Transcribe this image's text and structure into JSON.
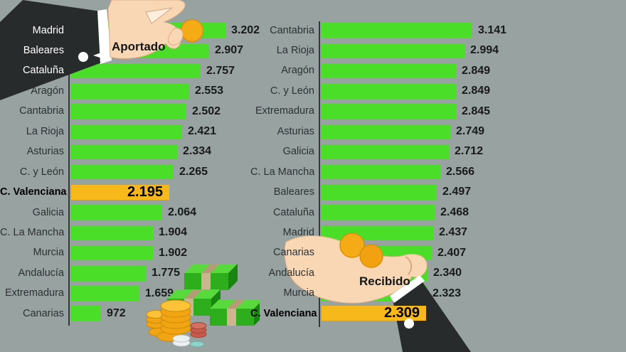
{
  "colors": {
    "background": "#98a2a1",
    "bar_green": "#4ade28",
    "bar_highlight": "#f7b81b",
    "axis": "#33383a",
    "label_text": "#2c3133",
    "label_on_sleeve": "#ffffff",
    "value_text": "#17191a",
    "sleeve_black": "#282b2c",
    "hand_skin": "#f9d7b5",
    "coin_gold": "#f2a716"
  },
  "icons": {
    "giving_hand_icon": "hand dropping a gold coin (left, Aportado)",
    "receiving_hand_icon": "open hand catching gold coins (right, Recibido)",
    "money_stacks_icon": "green banknote bundles with piles of gold, red and silver coins",
    "white_dot_left": "white round marker on black sleeve",
    "white_dot_right": "white round marker on black sleeve"
  },
  "chart_data": [
    {
      "type": "bar",
      "orientation": "horizontal",
      "title": "Aportado",
      "categories": [
        "Madrid",
        "Baleares",
        "Cataluña",
        "Aragón",
        "Cantabria",
        "La Rioja",
        "Asturias",
        "C. y León",
        "C. Valenciana",
        "Galicia",
        "C. La Mancha",
        "Murcia",
        "Andalucía",
        "Extremadura",
        "Canarias"
      ],
      "values": [
        3202,
        2907,
        2757,
        2553,
        2502,
        2421,
        2334,
        2265,
        2195,
        2064,
        1904,
        1902,
        1775,
        1659,
        972
      ],
      "value_labels": [
        "3.202",
        "2.907",
        "2.757",
        "2.553",
        "2.502",
        "2.421",
        "2.334",
        "2.265",
        "2.195",
        "2.064",
        "1.904",
        "1.902",
        "1.775",
        "1.659",
        "972"
      ],
      "highlight_index": 8,
      "highlight_category": "C. Valenciana",
      "grid": false,
      "legend_position": "none",
      "xlim": [
        0,
        3300
      ]
    },
    {
      "type": "bar",
      "orientation": "horizontal",
      "title": "Recibido",
      "categories": [
        "Cantabria",
        "La Rioja",
        "Aragón",
        "C. y León",
        "Extremadura",
        "Asturias",
        "Galicia",
        "C. La Mancha",
        "Baleares",
        "Cataluña",
        "Madrid",
        "Canarias",
        "Andalucía",
        "Murcia",
        "C. Valenciana"
      ],
      "values": [
        3141,
        2994,
        2849,
        2849,
        2845,
        2749,
        2712,
        2566,
        2497,
        2468,
        2437,
        2407,
        2340,
        2323,
        2309
      ],
      "value_labels": [
        "3.141",
        "2.994",
        "2.849",
        "2.849",
        "2.845",
        "2.749",
        "2.712",
        "2.566",
        "2.497",
        "2.468",
        "2.437",
        "2.407",
        "2.340",
        "2.323",
        "2.309"
      ],
      "highlight_index": 14,
      "highlight_category": "C. Valenciana",
      "grid": false,
      "legend_position": "none",
      "xlim": [
        0,
        3300
      ]
    }
  ]
}
